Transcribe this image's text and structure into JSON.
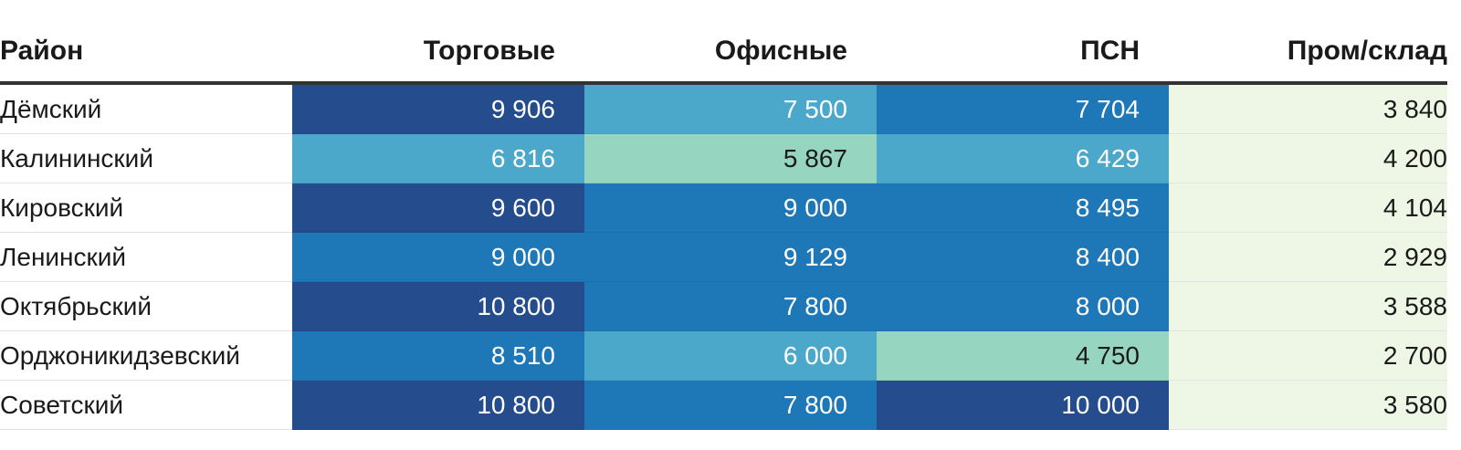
{
  "chart_data": {
    "type": "table",
    "columns": [
      "Район",
      "Торговые",
      "Офисные",
      "ПСН",
      "Пром/склад"
    ],
    "rows": [
      {
        "district": "Дёмский",
        "values": [
          "9 906",
          "7 500",
          "7 704",
          "3 840"
        ]
      },
      {
        "district": "Калининский",
        "values": [
          "6 816",
          "5 867",
          "6 429",
          "4 200"
        ]
      },
      {
        "district": "Кировский",
        "values": [
          "9 600",
          "9 000",
          "8 495",
          "4 104"
        ]
      },
      {
        "district": "Ленинский",
        "values": [
          "9 000",
          "9 129",
          "8 400",
          "2 929"
        ]
      },
      {
        "district": "Октябрьский",
        "values": [
          "10 800",
          "7 800",
          "8 000",
          "3 588"
        ]
      },
      {
        "district": "Орджоникидзевский",
        "values": [
          "8 510",
          "6 000",
          "4 750",
          "2 700"
        ]
      },
      {
        "district": "Советский",
        "values": [
          "10 800",
          "7 800",
          "10 000",
          "3 580"
        ]
      }
    ],
    "heat_scale": [
      {
        "max": 5999,
        "bg": "#96d5c0",
        "fg": "#1a1a1a"
      },
      {
        "max": 7699,
        "bg": "#4ba8cb",
        "fg": "#ffffff"
      },
      {
        "max": 9199,
        "bg": "#1e78b8",
        "fg": "#ffffff"
      },
      {
        "max": 999999,
        "bg": "#254c8c",
        "fg": "#ffffff"
      }
    ],
    "last_column_bg": "#eef7e5"
  }
}
